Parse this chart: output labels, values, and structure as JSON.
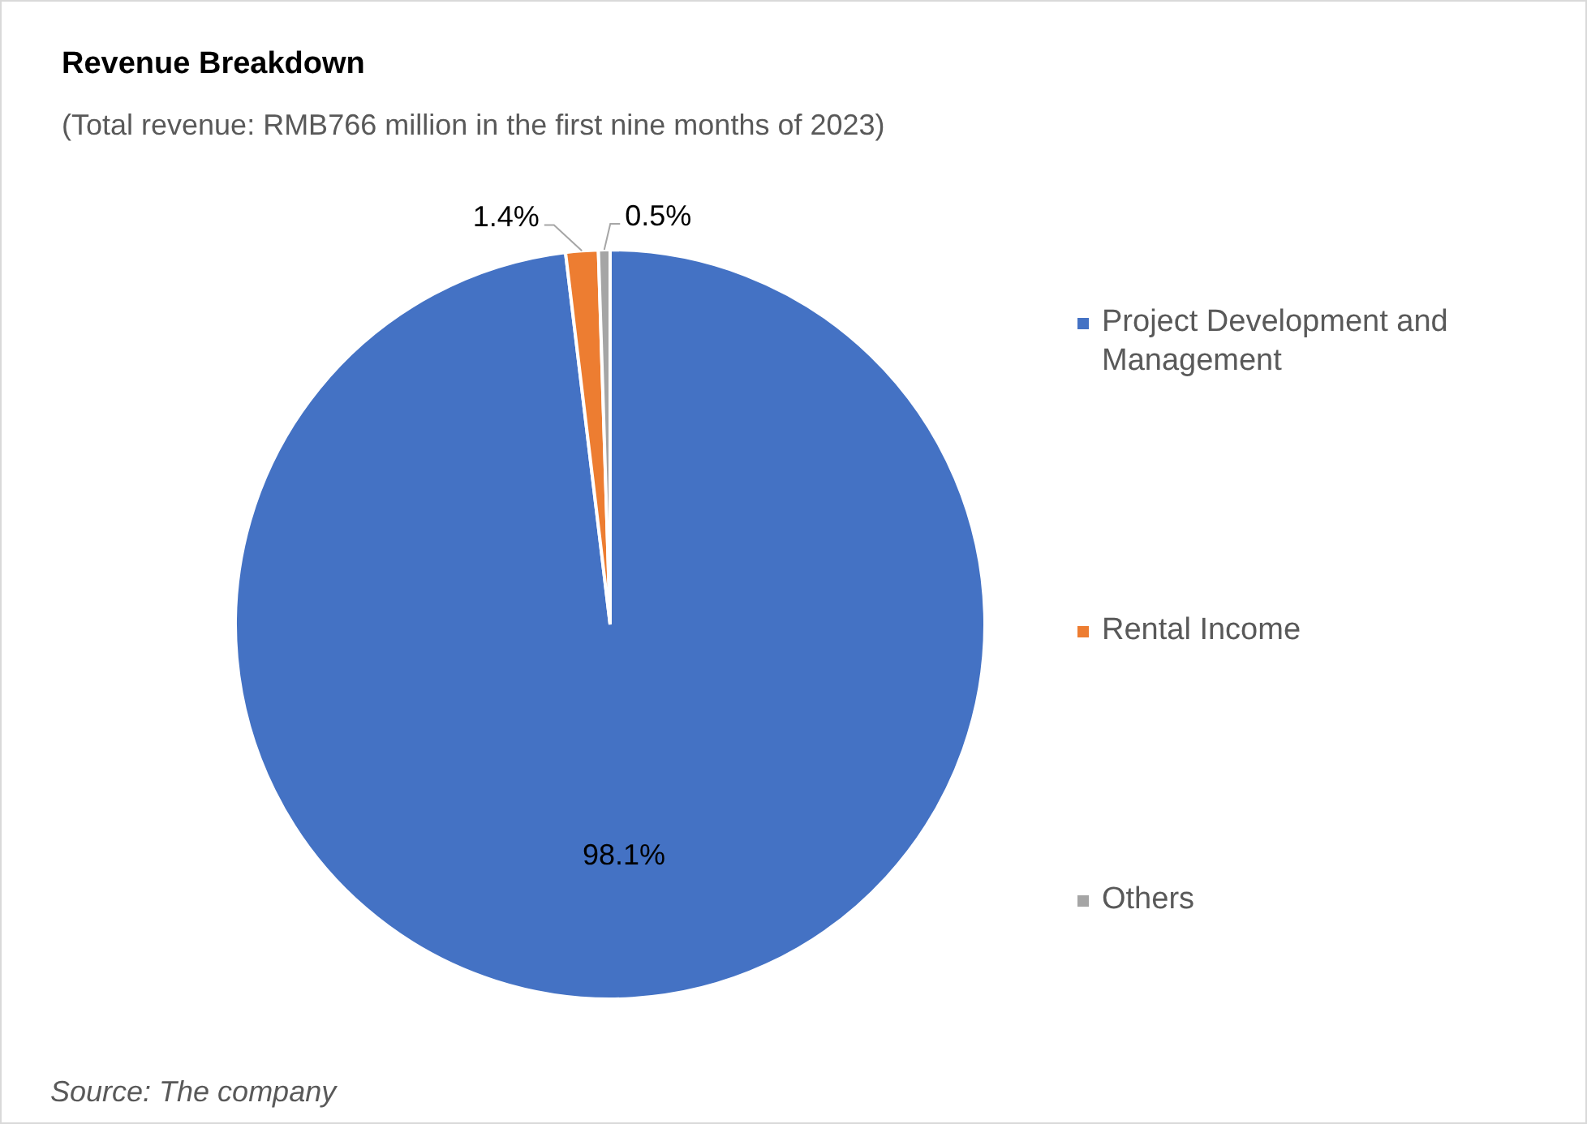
{
  "chart_data": {
    "type": "pie",
    "title": "Revenue Breakdown",
    "subtitle": "(Total revenue: RMB766 million in the first nine months of 2023)",
    "categories": [
      "Project Development and Management",
      "Rental Income",
      "Others"
    ],
    "values": [
      98.1,
      1.4,
      0.5
    ],
    "colors": [
      "#4472c4",
      "#ed7d31",
      "#a5a5a5"
    ],
    "value_labels": [
      "98.1%",
      "1.4%",
      "0.5%"
    ],
    "legend": "right",
    "annotations": [
      "Source: The company"
    ]
  }
}
